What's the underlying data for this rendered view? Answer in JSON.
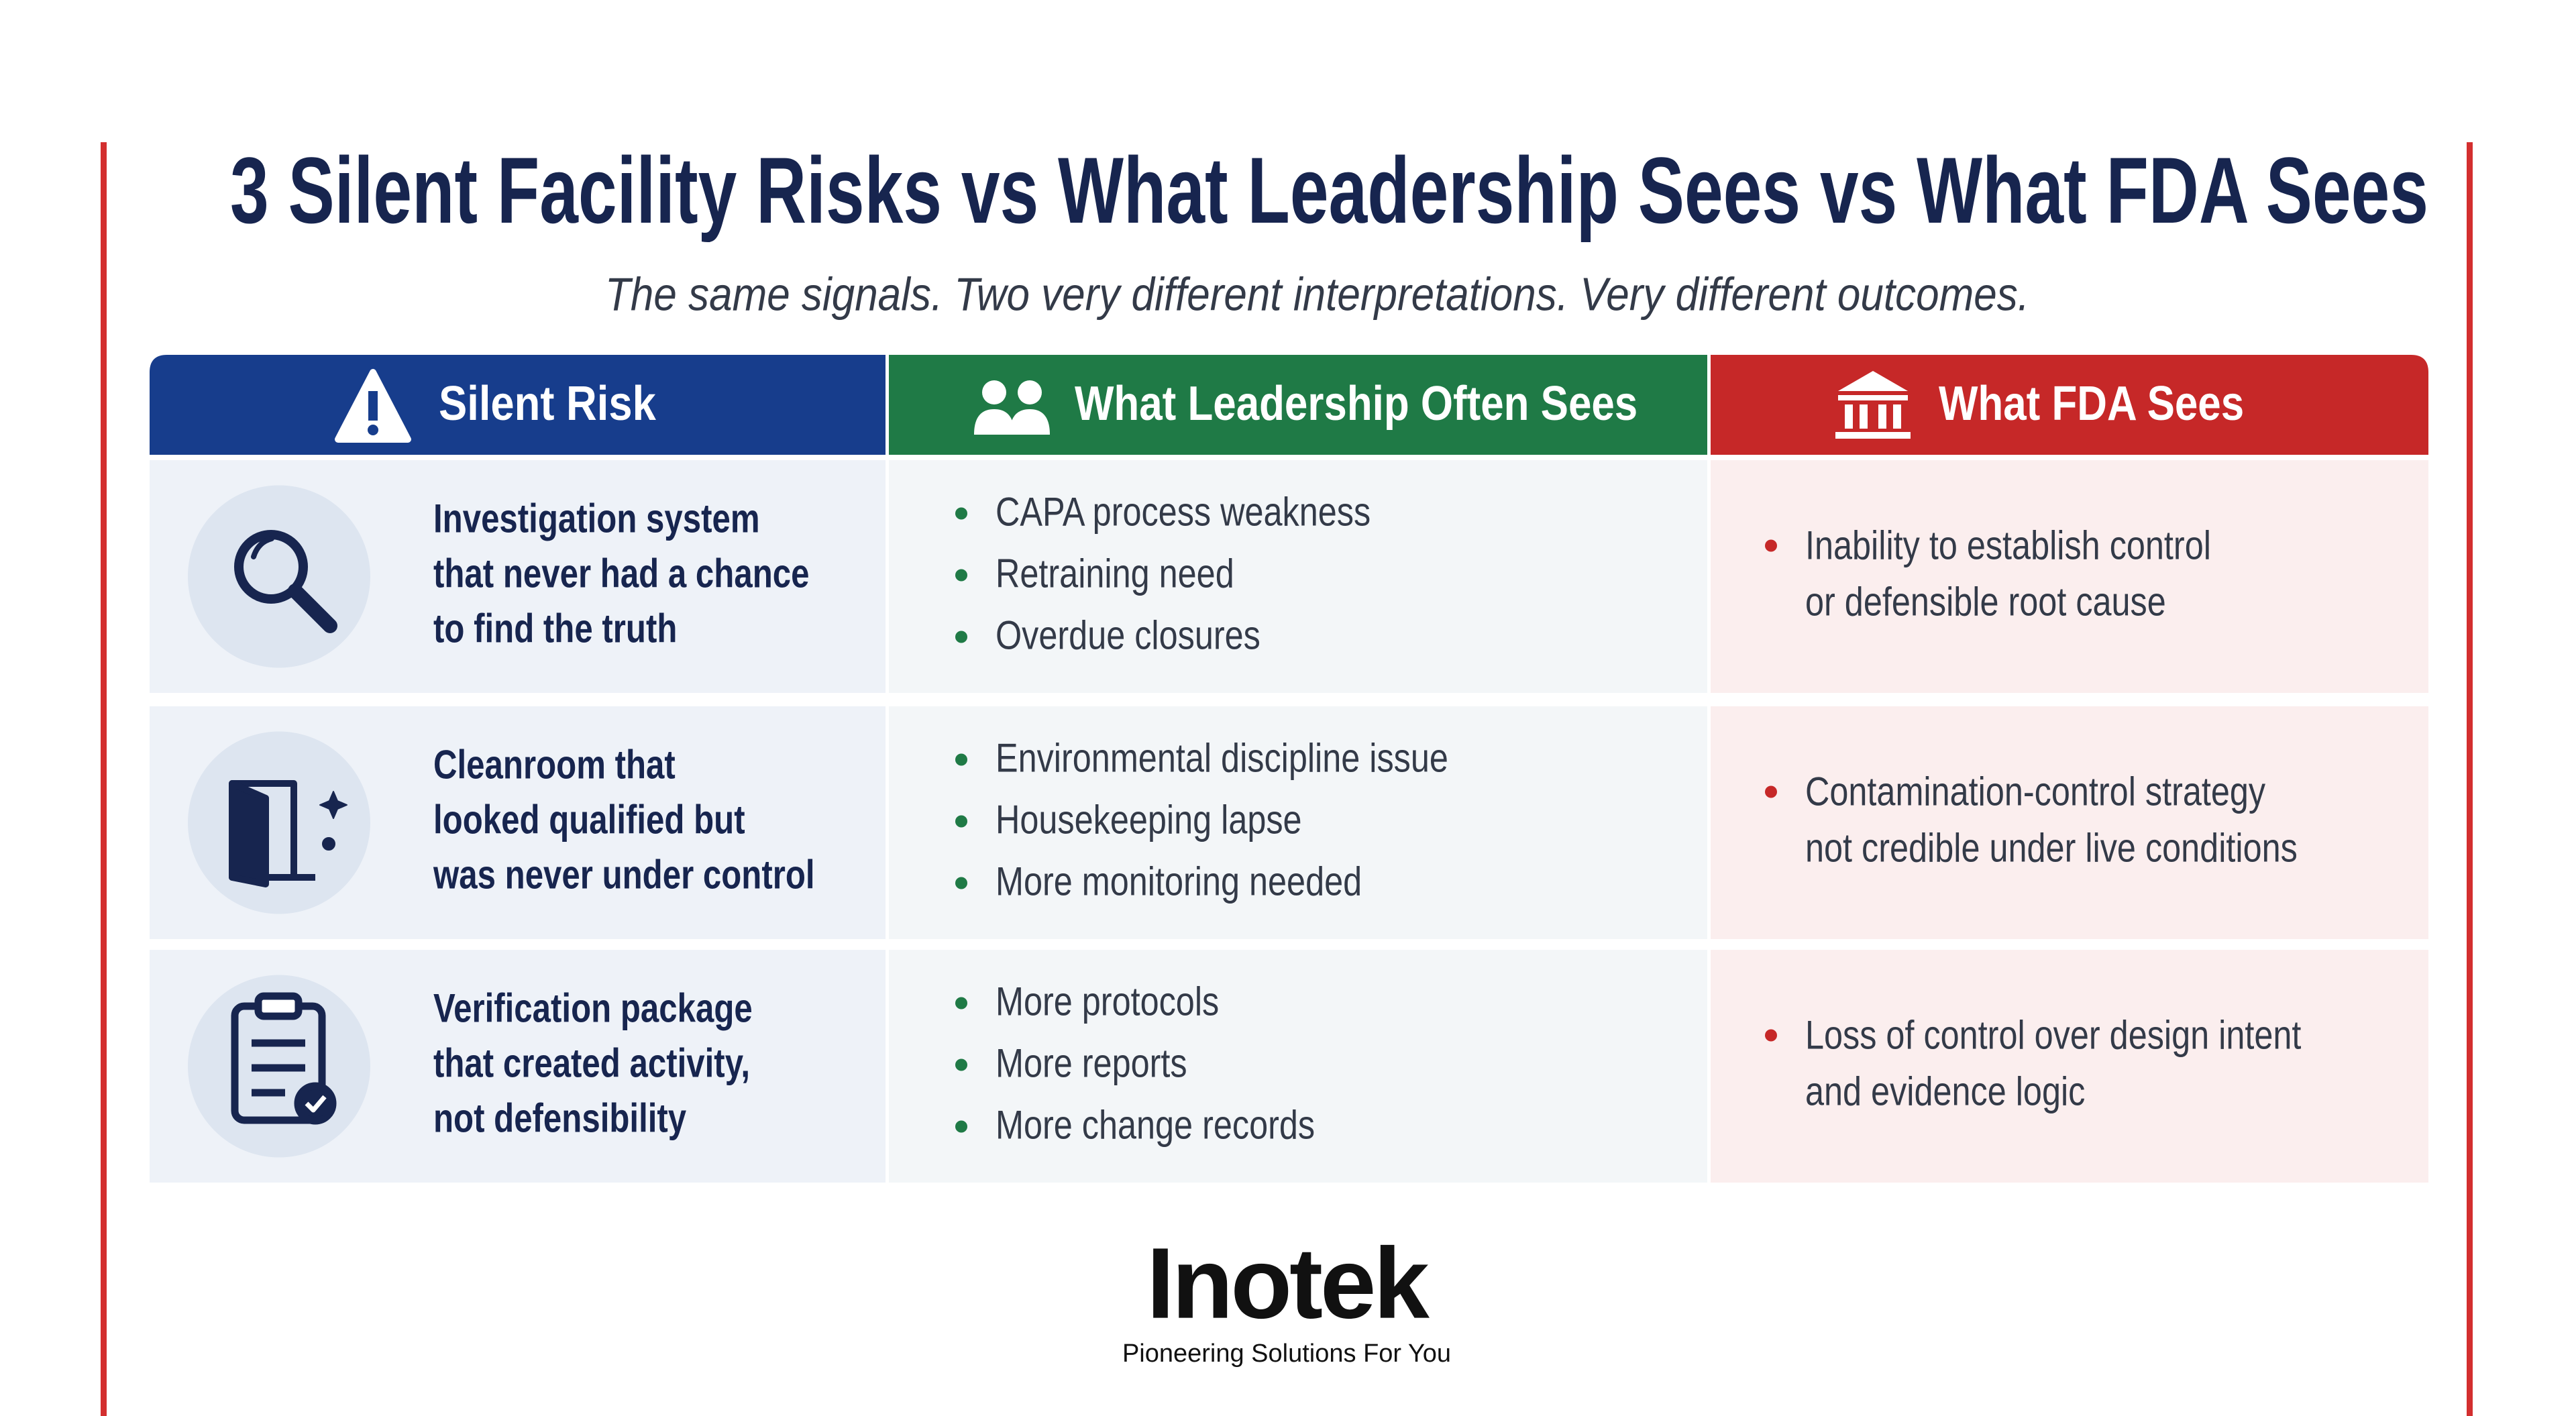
{
  "header": {
    "title": "3 Silent Facility Risks vs What Leadership Sees vs What FDA Sees",
    "subtitle": "The same signals. Two very different interpretations. Very different outcomes."
  },
  "table": {
    "columns": [
      "Silent Risk",
      "What Leadership Often Sees",
      "What FDA Sees"
    ],
    "rows": [
      {
        "risk": [
          "Investigation system",
          "that never had a chance",
          "to find the truth"
        ],
        "leadership": [
          "CAPA process weakness",
          "Retraining need",
          "Overdue closures"
        ],
        "fda": [
          "Inability to establish control",
          "or defensible root cause"
        ]
      },
      {
        "risk": [
          "Cleanroom that",
          "looked qualified but",
          "was never under control"
        ],
        "leadership": [
          "Environmental discipline issue",
          "Housekeeping lapse",
          "More monitoring needed"
        ],
        "fda": [
          "Contamination-control strategy",
          "not credible under live conditions"
        ]
      },
      {
        "risk": [
          "Verification package",
          "that created activity,",
          "not defensibility"
        ],
        "leadership": [
          "More protocols",
          "More reports",
          "More change records"
        ],
        "fda": [
          "Loss of control over design intent",
          "and evidence logic"
        ]
      }
    ]
  },
  "footer": {
    "logo": "Inotek",
    "tagline": "Pioneering Solutions For You"
  }
}
